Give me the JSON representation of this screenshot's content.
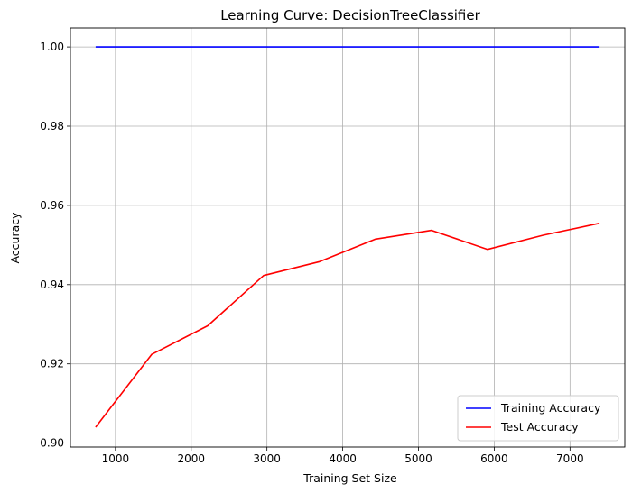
{
  "chart_data": {
    "type": "line",
    "title": "Learning Curve: DecisionTreeClassifier",
    "xlabel": "Training Set Size",
    "ylabel": "Accuracy",
    "x": [
      739,
      1478,
      2217,
      2956,
      3695,
      4434,
      5173,
      5912,
      6651,
      7390
    ],
    "series": [
      {
        "name": "Training Accuracy",
        "color": "#0000ff",
        "values": [
          1.0,
          1.0,
          1.0,
          1.0,
          1.0,
          1.0,
          1.0,
          1.0,
          1.0,
          1.0
        ]
      },
      {
        "name": "Test Accuracy",
        "color": "#ff0000",
        "values": [
          0.904,
          0.9224,
          0.9296,
          0.9423,
          0.9458,
          0.9515,
          0.9537,
          0.9489,
          0.9525,
          0.9555
        ]
      }
    ],
    "xlim": [
      406,
      7723
    ],
    "ylim": [
      0.899,
      1.0048
    ],
    "xticks": [
      1000,
      2000,
      3000,
      4000,
      5000,
      6000,
      7000
    ],
    "yticks": [
      0.9,
      0.92,
      0.94,
      0.96,
      0.98,
      1.0
    ],
    "xtick_labels": [
      "1000",
      "2000",
      "3000",
      "4000",
      "5000",
      "6000",
      "7000"
    ],
    "ytick_labels": [
      "0.90",
      "0.92",
      "0.94",
      "0.96",
      "0.98",
      "1.00"
    ],
    "grid": true,
    "legend_position": "lower-right"
  }
}
